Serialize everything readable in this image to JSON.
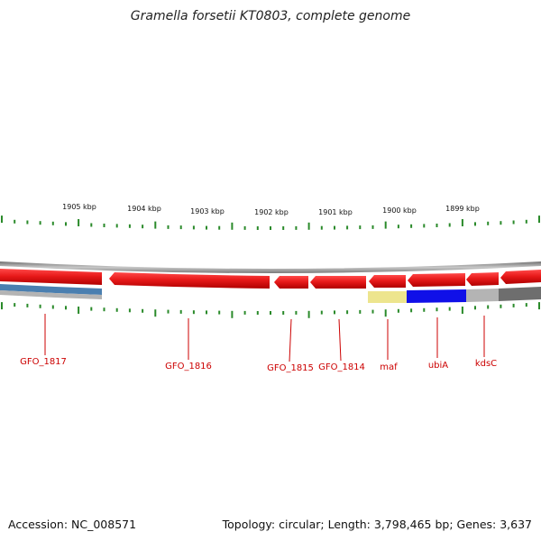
{
  "title": "Gramella forsetii KT0803, complete genome",
  "accession": "Accession: NC_008571",
  "summary": "Topology: circular; Length: 3,798,465 bp; Genes: 3,637",
  "colors": {
    "backbone": "#8c8c8c",
    "tick": "#2a8a2a",
    "gene_forward": "#e81a1a",
    "gene_label": "#cc0000",
    "blue_gene": "#1010e8",
    "yellow_gene": "#ede58e",
    "steel_gene": "#4a7fb0",
    "gray_gene": "#b4b4b4",
    "dark_gray_gene": "#6e6e6e"
  },
  "scale_labels": [
    "1905 kbp",
    "1904 kbp",
    "1903 kbp",
    "1902 kbp",
    "1901 kbp",
    "1900 kbp",
    "1899 kbp"
  ],
  "gene_labels": [
    "GFO_1817",
    "GFO_1816",
    "GFO_1815",
    "GFO_1814",
    "maf",
    "ubiA",
    "kdsC"
  ]
}
